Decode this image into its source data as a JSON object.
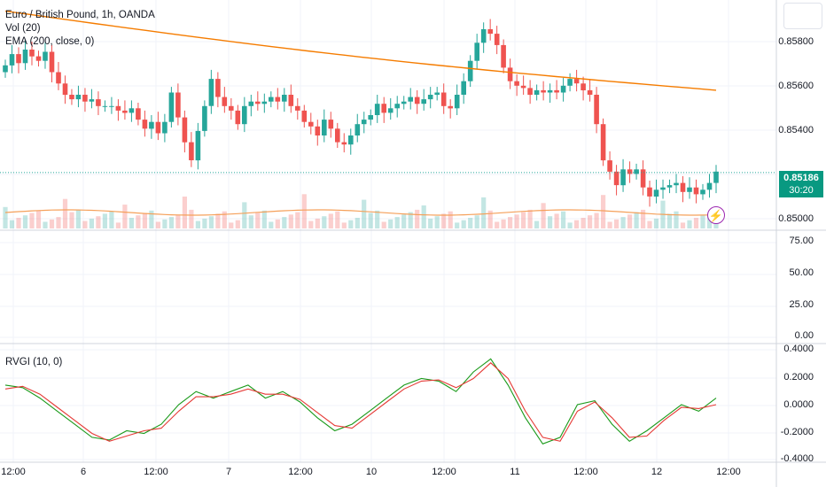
{
  "symbol": {
    "title": "Euro / British Pound, 1h, OANDA",
    "indicators": [
      "Vol (20)",
      "EMA (200, close, 0)"
    ]
  },
  "rsi_panel": {
    "ticks": [
      "75.00",
      "50.00",
      "25.00",
      "0.00"
    ]
  },
  "rvgi": {
    "label": "RVGI (10, 0)",
    "ticks": [
      "0.4000",
      "0.2000",
      "0.0000",
      "-0.2000",
      "-0.4000"
    ]
  },
  "price_axis": {
    "ticks": [
      "0.85800",
      "0.85600",
      "0.85400",
      "0.85000"
    ]
  },
  "last_price": {
    "value": "0.85186",
    "countdown": "30:20"
  },
  "time_axis": [
    "12:00",
    "6",
    "12:00",
    "7",
    "12:00",
    "10",
    "12:00",
    "11",
    "12:00",
    "12",
    "12:00"
  ],
  "colors": {
    "up": "#26a69a",
    "down": "#ef5350",
    "ema": "#f57c00",
    "signal_green": "#1a9a1a",
    "signal_red": "#e53935",
    "badge": "#089981"
  },
  "icons": {
    "alert": "lightning-icon"
  },
  "chart_data": [
    {
      "type": "candlestick",
      "x_labels": [
        "12:00",
        "6",
        "12:00",
        "7",
        "12:00",
        "10",
        "12:00",
        "11",
        "12:00",
        "12",
        "12:00"
      ],
      "ylim": [
        0.8497,
        0.8591
      ],
      "yticks": [
        0.858,
        0.856,
        0.854,
        0.85
      ],
      "ohlc_close": [
        0.8566,
        0.8571,
        0.8567,
        0.8573,
        0.857,
        0.8568,
        0.8572,
        0.8563,
        0.8558,
        0.8553,
        0.8551,
        0.8553,
        0.855,
        0.8551,
        0.8548,
        0.8548,
        0.8548,
        0.8546,
        0.8545,
        0.8547,
        0.8542,
        0.8538,
        0.8541,
        0.8536,
        0.8541,
        0.8554,
        0.8543,
        0.8532,
        0.8524,
        0.8537,
        0.8548,
        0.856,
        0.8552,
        0.8548,
        0.8546,
        0.854,
        0.8548,
        0.855,
        0.8549,
        0.855,
        0.8552,
        0.855,
        0.8553,
        0.8548,
        0.8546,
        0.8541,
        0.8539,
        0.8535,
        0.8542,
        0.8538,
        0.8532,
        0.8531,
        0.8535,
        0.854,
        0.8542,
        0.8544,
        0.8549,
        0.8545,
        0.8547,
        0.8549,
        0.855,
        0.8552,
        0.8549,
        0.8551,
        0.8553,
        0.8554,
        0.8548,
        0.8547,
        0.8553,
        0.8559,
        0.8568,
        0.8576,
        0.8582,
        0.858,
        0.8575,
        0.8565,
        0.8559,
        0.8557,
        0.8556,
        0.8553,
        0.8555,
        0.8554,
        0.8555,
        0.8554,
        0.8557,
        0.856,
        0.8558,
        0.8555,
        0.8553,
        0.854,
        0.8524,
        0.8519,
        0.8513,
        0.852,
        0.8518,
        0.852,
        0.8512,
        0.8508,
        0.8511,
        0.8512,
        0.8513,
        0.8514,
        0.851,
        0.8512,
        0.8509,
        0.8511,
        0.8514,
        0.8519
      ],
      "ema_200": {
        "start": 0.859,
        "end": 0.8555
      },
      "volume_sma": 20
    },
    {
      "type": "line",
      "title": "RVGI (10, 0)",
      "ylim": [
        -0.42,
        0.42
      ],
      "series": [
        {
          "name": "RVGI",
          "values": [
            0.15,
            0.13,
            0.05,
            -0.05,
            -0.15,
            -0.25,
            -0.27,
            -0.2,
            -0.22,
            -0.15,
            0.0,
            0.1,
            0.05,
            0.1,
            0.15,
            0.05,
            0.1,
            0.02,
            -0.1,
            -0.2,
            -0.15,
            -0.05,
            0.05,
            0.15,
            0.2,
            0.18,
            0.1,
            0.25,
            0.35,
            0.15,
            -0.1,
            -0.3,
            -0.25,
            0.0,
            0.03,
            -0.15,
            -0.28,
            -0.2,
            -0.1,
            0.0,
            -0.05,
            0.05
          ]
        },
        {
          "name": "Signal",
          "values": [
            0.12,
            0.14,
            0.08,
            -0.02,
            -0.12,
            -0.22,
            -0.28,
            -0.24,
            -0.2,
            -0.18,
            -0.05,
            0.06,
            0.06,
            0.08,
            0.12,
            0.08,
            0.08,
            0.04,
            -0.06,
            -0.16,
            -0.18,
            -0.08,
            0.02,
            0.12,
            0.18,
            0.19,
            0.13,
            0.2,
            0.32,
            0.2,
            -0.05,
            -0.25,
            -0.28,
            -0.05,
            0.02,
            -0.1,
            -0.25,
            -0.24,
            -0.12,
            -0.02,
            -0.03,
            0.0
          ]
        }
      ]
    }
  ]
}
